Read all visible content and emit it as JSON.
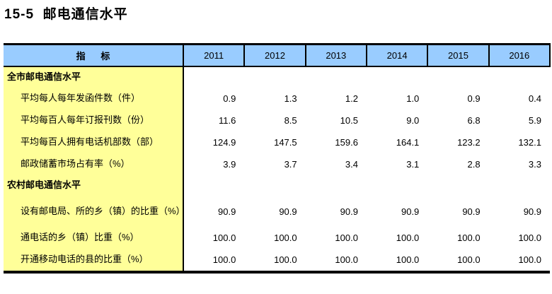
{
  "title": "15-5  邮电通信水平",
  "colors": {
    "header_bg": "#99CCFF",
    "indicator_bg": "#FFFF99",
    "border": "#000000"
  },
  "table": {
    "indicator_header": "指      标",
    "years": [
      "2011",
      "2012",
      "2013",
      "2014",
      "2015",
      "2016"
    ],
    "rows": [
      {
        "label": "全市邮电通信水平",
        "type": "section",
        "values": [
          "",
          "",
          "",
          "",
          "",
          ""
        ]
      },
      {
        "label": "平均每人每年发函件数（件）",
        "type": "item",
        "values": [
          "0.9",
          "1.3",
          "1.2",
          "1.0",
          "0.9",
          "0.4"
        ]
      },
      {
        "label": "平均每百人每年订报刊数（份）",
        "type": "item",
        "values": [
          "11.6",
          "8.5",
          "10.5",
          "9.0",
          "6.8",
          "5.9"
        ]
      },
      {
        "label": "平均每百人拥有电话机部数（部）",
        "type": "item",
        "values": [
          "124.9",
          "147.5",
          "159.6",
          "164.1",
          "123.2",
          "132.1"
        ]
      },
      {
        "label": "邮政储蓄市场占有率（%）",
        "type": "item",
        "values": [
          "3.9",
          "3.7",
          "3.4",
          "3.1",
          "2.8",
          "3.3"
        ]
      },
      {
        "label": "农村邮电通信水平",
        "type": "section",
        "values": [
          "",
          "",
          "",
          "",
          "",
          ""
        ]
      },
      {
        "label": "设有邮电局、所的乡（镇）的比重（%）",
        "type": "item",
        "values": [
          "90.9",
          "90.9",
          "90.9",
          "90.9",
          "90.9",
          "90.9"
        ]
      },
      {
        "label": "通电话的乡（镇）比重（%）",
        "type": "item",
        "values": [
          "100.0",
          "100.0",
          "100.0",
          "100.0",
          "100.0",
          "100.0"
        ]
      },
      {
        "label": "开通移动电话的县的比重（%）",
        "type": "item",
        "values": [
          "100.0",
          "100.0",
          "100.0",
          "100.0",
          "100.0",
          "100.0"
        ]
      }
    ]
  }
}
